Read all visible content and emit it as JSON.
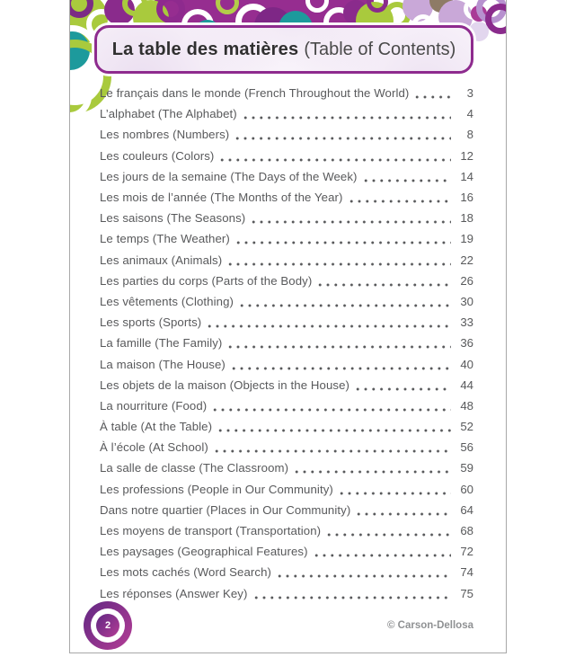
{
  "page": {
    "title_bold": "La table des matières",
    "title_regular": "(Table of Contents)",
    "page_number": "2",
    "copyright": "© Carson-Dellosa"
  },
  "toc": {
    "entries": [
      {
        "label": "Le français dans le monde (French Throughout the World)",
        "page": "3"
      },
      {
        "label": "L’alphabet (The Alphabet)",
        "page": "4"
      },
      {
        "label": "Les nombres (Numbers)",
        "page": "8"
      },
      {
        "label": "Les couleurs (Colors)",
        "page": "12"
      },
      {
        "label": "Les jours de la semaine (The Days of the Week)",
        "page": "14"
      },
      {
        "label": "Les mois de l’année (The Months of the Year)",
        "page": "16"
      },
      {
        "label": "Les saisons (The Seasons)",
        "page": "18"
      },
      {
        "label": "Le temps (The Weather)",
        "page": "19"
      },
      {
        "label": "Les animaux (Animals)",
        "page": "22"
      },
      {
        "label": "Les parties du corps (Parts of the Body)",
        "page": "26"
      },
      {
        "label": "Les vêtements (Clothing)",
        "page": "30"
      },
      {
        "label": "Les sports (Sports)",
        "page": "33"
      },
      {
        "label": "La famille (The Family)",
        "page": "36"
      },
      {
        "label": "La maison (The House)",
        "page": "40"
      },
      {
        "label": "Les objets de la maison (Objects in the House)",
        "page": "44"
      },
      {
        "label": "La nourriture (Food)",
        "page": "48"
      },
      {
        "label": "À table (At the Table)",
        "page": "52"
      },
      {
        "label": "À l’école (At School)",
        "page": "56"
      },
      {
        "label": "La salle de classe (The Classroom)",
        "page": "59"
      },
      {
        "label": "Les professions (People in Our Community)",
        "page": "60"
      },
      {
        "label": "Dans notre quartier (Places in Our Community)",
        "page": "64"
      },
      {
        "label": "Les moyens de transport (Transportation)",
        "page": "68"
      },
      {
        "label": "Les paysages (Geographical Features)",
        "page": "72"
      },
      {
        "label": "Les mots cachés (Word Search)",
        "page": "74"
      },
      {
        "label": "Les réponses (Answer Key)",
        "page": "75"
      }
    ]
  },
  "colors": {
    "accent_purple": "#8e2b8e",
    "magenta": "#962d90",
    "teal": "#1d9a9c",
    "lime": "#a9ca3d",
    "lavender": "#c9a8d8",
    "taupe": "#8e7b66",
    "text_gray": "#58595b",
    "copyright_gray": "#8f9193"
  }
}
